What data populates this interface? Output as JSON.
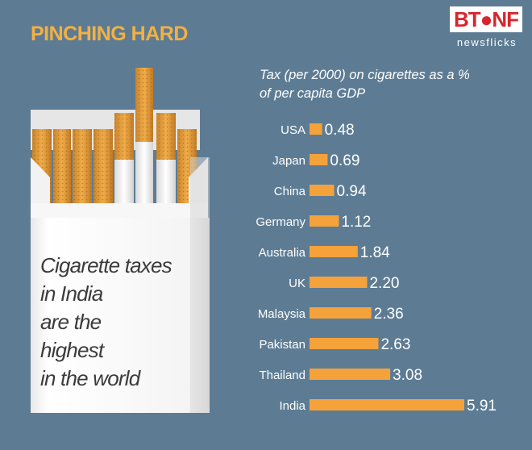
{
  "headline": "PINCHING HARD",
  "logo": {
    "main": "BT●NF",
    "sub": "newsflicks"
  },
  "pack_text": [
    "Cigarette taxes",
    "in India",
    "are the",
    "highest",
    "in the world"
  ],
  "colors": {
    "background": "#5d7c94",
    "bar": "#f5a23b",
    "headline": "#f4b041"
  },
  "chart_data": {
    "type": "bar",
    "orientation": "horizontal",
    "title": "Tax (per 2000) on cigarettes as a % of per capita GDP",
    "title_lines": [
      "Tax (per 2000) on cigarettes as a %",
      "of per capita GDP"
    ],
    "categories": [
      "USA",
      "Japan",
      "China",
      "Germany",
      "Australia",
      "UK",
      "Malaysia",
      "Pakistan",
      "Thailand",
      "India"
    ],
    "values": [
      0.48,
      0.69,
      0.94,
      1.12,
      1.84,
      2.2,
      2.36,
      2.63,
      3.08,
      5.91
    ],
    "value_labels": [
      "0.48",
      "0.69",
      "0.94",
      "1.12",
      "1.84",
      "2.20",
      "2.36",
      "2.63",
      "3.08",
      "5.91"
    ],
    "xlim": [
      0,
      5.91
    ],
    "grid": false,
    "legend": "none"
  }
}
